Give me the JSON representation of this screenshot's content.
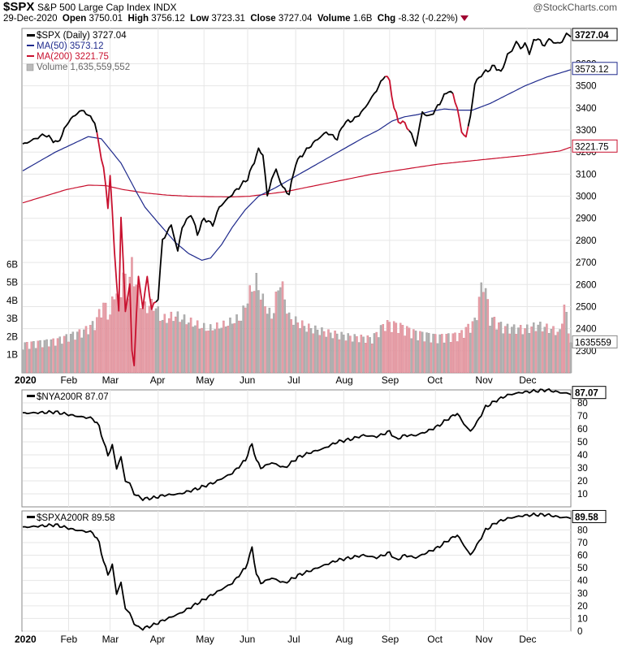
{
  "header": {
    "symbol": "$SPX",
    "description": "S&P 500 Large Cap Index",
    "exchange": "INDX",
    "brand": "@StockCharts.com",
    "date": "29-Dec-2020",
    "open_label": "Open",
    "open": "3750.01",
    "high_label": "High",
    "high": "3756.12",
    "low_label": "Low",
    "low": "3723.31",
    "close_label": "Close",
    "close": "3727.04",
    "volume_label": "Volume",
    "volume": "1.6B",
    "chg_label": "Chg",
    "chg": "-8.32 (-0.22%)"
  },
  "colors": {
    "up": "#000000",
    "down": "#c8102e",
    "ma50": "#1f2a8c",
    "ma200": "#c8102e",
    "vol_up": "#b0b0b0",
    "vol_down": "#e8a0a8",
    "grid": "#e6e6e6"
  },
  "chart_data": [
    {
      "type": "line",
      "legend": [
        {
          "label": "$SPX (Daily) 3727.04"
        },
        {
          "label": "MA(50) 3573.12"
        },
        {
          "label": "MA(200) 3221.75"
        },
        {
          "label": "Volume 1,635,559,552"
        }
      ],
      "price_ylim": [
        2200,
        3760
      ],
      "price_ticks": [
        "3600",
        "3500",
        "3400",
        "3300",
        "3200",
        "3100",
        "3000",
        "2900",
        "2800",
        "2700",
        "2600",
        "2500",
        "2400",
        "2300"
      ],
      "volume_ylim": [
        0,
        6.6
      ],
      "volume_ticks": [
        "1B",
        "2B",
        "3B",
        "4B",
        "5B",
        "6B"
      ],
      "last_labels": {
        "price": "3727.04",
        "ma50": "3573.12",
        "ma200": "3221.75",
        "volume": "1635559"
      },
      "month_labels": [
        "2020",
        "Feb",
        "Mar",
        "Apr",
        "May",
        "Jun",
        "Jul",
        "Aug",
        "Sep",
        "Oct",
        "Nov",
        "Dec"
      ],
      "month_positions": [
        0,
        21,
        40,
        62,
        83,
        103,
        125,
        147,
        168,
        189,
        211,
        231
      ],
      "total_days": 252,
      "price_anchors": [
        [
          0,
          3234
        ],
        [
          10,
          3280
        ],
        [
          16,
          3240
        ],
        [
          21,
          3340
        ],
        [
          26,
          3385
        ],
        [
          28,
          3386
        ],
        [
          33,
          3337
        ],
        [
          35,
          3225
        ],
        [
          37,
          3130
        ],
        [
          39,
          2950
        ],
        [
          40,
          3100
        ],
        [
          42,
          2750
        ],
        [
          44,
          2480
        ],
        [
          45,
          2900
        ],
        [
          46,
          2710
        ],
        [
          47,
          2480
        ],
        [
          49,
          2600
        ],
        [
          50,
          2300
        ],
        [
          51,
          2237
        ],
        [
          52,
          2450
        ],
        [
          53,
          2630
        ],
        [
          55,
          2500
        ],
        [
          57,
          2630
        ],
        [
          59,
          2490
        ],
        [
          62,
          2540
        ],
        [
          64,
          2800
        ],
        [
          68,
          2870
        ],
        [
          71,
          2750
        ],
        [
          73,
          2860
        ],
        [
          77,
          2920
        ],
        [
          80,
          2830
        ],
        [
          83,
          2900
        ],
        [
          87,
          2870
        ],
        [
          90,
          2950
        ],
        [
          96,
          3010
        ],
        [
          103,
          3080
        ],
        [
          108,
          3210
        ],
        [
          110,
          3190
        ],
        [
          112,
          3000
        ],
        [
          114,
          3080
        ],
        [
          116,
          3120
        ],
        [
          119,
          3040
        ],
        [
          122,
          3010
        ],
        [
          125,
          3150
        ],
        [
          129,
          3200
        ],
        [
          134,
          3250
        ],
        [
          139,
          3290
        ],
        [
          144,
          3260
        ],
        [
          147,
          3330
        ],
        [
          152,
          3350
        ],
        [
          156,
          3390
        ],
        [
          162,
          3480
        ],
        [
          166,
          3550
        ],
        [
          168,
          3520
        ],
        [
          170,
          3400
        ],
        [
          172,
          3340
        ],
        [
          175,
          3330
        ],
        [
          178,
          3280
        ],
        [
          180,
          3230
        ],
        [
          183,
          3380
        ],
        [
          186,
          3360
        ],
        [
          189,
          3390
        ],
        [
          192,
          3440
        ],
        [
          195,
          3480
        ],
        [
          197,
          3460
        ],
        [
          199,
          3400
        ],
        [
          201,
          3290
        ],
        [
          203,
          3270
        ],
        [
          205,
          3360
        ],
        [
          207,
          3510
        ],
        [
          210,
          3550
        ],
        [
          213,
          3570
        ],
        [
          216,
          3590
        ],
        [
          219,
          3560
        ],
        [
          222,
          3640
        ],
        [
          224,
          3660
        ],
        [
          226,
          3700
        ],
        [
          228,
          3670
        ],
        [
          230,
          3690
        ],
        [
          232,
          3650
        ],
        [
          234,
          3700
        ],
        [
          236,
          3720
        ],
        [
          238,
          3680
        ],
        [
          240,
          3700
        ],
        [
          242,
          3710
        ],
        [
          244,
          3690
        ],
        [
          247,
          3700
        ],
        [
          249,
          3735
        ],
        [
          251,
          3727
        ]
      ],
      "ma50_anchors": [
        [
          0,
          3115
        ],
        [
          15,
          3200
        ],
        [
          30,
          3270
        ],
        [
          36,
          3260
        ],
        [
          45,
          3150
        ],
        [
          52,
          3020
        ],
        [
          56,
          2950
        ],
        [
          62,
          2880
        ],
        [
          70,
          2790
        ],
        [
          76,
          2740
        ],
        [
          82,
          2710
        ],
        [
          86,
          2720
        ],
        [
          91,
          2780
        ],
        [
          96,
          2860
        ],
        [
          102,
          2940
        ],
        [
          108,
          3000
        ],
        [
          116,
          3040
        ],
        [
          124,
          3085
        ],
        [
          132,
          3130
        ],
        [
          140,
          3175
        ],
        [
          148,
          3220
        ],
        [
          156,
          3265
        ],
        [
          163,
          3300
        ],
        [
          169,
          3340
        ],
        [
          175,
          3360
        ],
        [
          181,
          3370
        ],
        [
          187,
          3385
        ],
        [
          193,
          3395
        ],
        [
          200,
          3390
        ],
        [
          206,
          3390
        ],
        [
          214,
          3420
        ],
        [
          222,
          3460
        ],
        [
          230,
          3500
        ],
        [
          240,
          3540
        ],
        [
          251,
          3573
        ]
      ],
      "ma200_anchors": [
        [
          0,
          2970
        ],
        [
          10,
          3000
        ],
        [
          20,
          3030
        ],
        [
          30,
          3050
        ],
        [
          38,
          3048
        ],
        [
          46,
          3030
        ],
        [
          56,
          3015
        ],
        [
          66,
          3005
        ],
        [
          76,
          3000
        ],
        [
          86,
          2998
        ],
        [
          96,
          2997
        ],
        [
          104,
          3000
        ],
        [
          112,
          3010
        ],
        [
          120,
          3020
        ],
        [
          130,
          3040
        ],
        [
          140,
          3060
        ],
        [
          150,
          3080
        ],
        [
          160,
          3100
        ],
        [
          170,
          3115
        ],
        [
          180,
          3130
        ],
        [
          190,
          3145
        ],
        [
          200,
          3155
        ],
        [
          210,
          3165
        ],
        [
          220,
          3175
        ],
        [
          230,
          3185
        ],
        [
          238,
          3195
        ],
        [
          246,
          3205
        ],
        [
          251,
          3222
        ]
      ],
      "down_ranges": [
        [
          34,
          60
        ],
        [
          166,
          176
        ],
        [
          197,
          203
        ]
      ],
      "volume_anchors": [
        [
          0,
          1.5
        ],
        [
          15,
          1.7
        ],
        [
          28,
          2.2
        ],
        [
          33,
          2.6
        ],
        [
          37,
          3.6
        ],
        [
          40,
          3.0
        ],
        [
          42,
          4.4
        ],
        [
          44,
          3.8
        ],
        [
          46,
          5.2
        ],
        [
          48,
          4.4
        ],
        [
          50,
          5.6
        ],
        [
          52,
          4.6
        ],
        [
          55,
          3.4
        ],
        [
          60,
          3.6
        ],
        [
          64,
          2.8
        ],
        [
          70,
          3.0
        ],
        [
          78,
          2.6
        ],
        [
          85,
          2.3
        ],
        [
          92,
          2.5
        ],
        [
          100,
          2.9
        ],
        [
          104,
          4.2
        ],
        [
          107,
          4.8
        ],
        [
          110,
          3.8
        ],
        [
          114,
          2.9
        ],
        [
          118,
          4.9
        ],
        [
          122,
          2.9
        ],
        [
          130,
          2.4
        ],
        [
          140,
          2.1
        ],
        [
          150,
          1.9
        ],
        [
          160,
          1.8
        ],
        [
          166,
          2.6
        ],
        [
          172,
          2.5
        ],
        [
          180,
          2.1
        ],
        [
          190,
          1.9
        ],
        [
          200,
          2.0
        ],
        [
          207,
          2.7
        ],
        [
          211,
          5.0
        ],
        [
          214,
          2.9
        ],
        [
          220,
          2.4
        ],
        [
          230,
          2.3
        ],
        [
          236,
          2.5
        ],
        [
          242,
          2.3
        ],
        [
          246,
          2.1
        ],
        [
          248,
          3.6
        ],
        [
          251,
          1.6
        ]
      ]
    },
    {
      "type": "line",
      "legend": [
        {
          "label": "$NYA200R 87.07"
        }
      ],
      "ylim": [
        0,
        90
      ],
      "ticks": [
        "10",
        "20",
        "30",
        "40",
        "50",
        "60",
        "70",
        "80"
      ],
      "last_label": "87.07",
      "anchors": [
        [
          0,
          72
        ],
        [
          15,
          73
        ],
        [
          24,
          70
        ],
        [
          32,
          68
        ],
        [
          35,
          62
        ],
        [
          37,
          50
        ],
        [
          39,
          40
        ],
        [
          41,
          47
        ],
        [
          43,
          30
        ],
        [
          45,
          38
        ],
        [
          47,
          20
        ],
        [
          49,
          18
        ],
        [
          51,
          10
        ],
        [
          53,
          8
        ],
        [
          55,
          6
        ],
        [
          60,
          7
        ],
        [
          65,
          9
        ],
        [
          72,
          10
        ],
        [
          80,
          14
        ],
        [
          88,
          19
        ],
        [
          96,
          26
        ],
        [
          102,
          36
        ],
        [
          104,
          45
        ],
        [
          105,
          48
        ],
        [
          107,
          36
        ],
        [
          109,
          30
        ],
        [
          114,
          34
        ],
        [
          120,
          30
        ],
        [
          126,
          38
        ],
        [
          132,
          42
        ],
        [
          138,
          45
        ],
        [
          144,
          50
        ],
        [
          150,
          52
        ],
        [
          156,
          55
        ],
        [
          162,
          54
        ],
        [
          168,
          58
        ],
        [
          171,
          52
        ],
        [
          175,
          55
        ],
        [
          180,
          55
        ],
        [
          185,
          58
        ],
        [
          190,
          62
        ],
        [
          195,
          68
        ],
        [
          199,
          72
        ],
        [
          202,
          64
        ],
        [
          205,
          58
        ],
        [
          208,
          65
        ],
        [
          212,
          77
        ],
        [
          217,
          82
        ],
        [
          222,
          86
        ],
        [
          228,
          88
        ],
        [
          234,
          89
        ],
        [
          240,
          90
        ],
        [
          246,
          88
        ],
        [
          251,
          87
        ]
      ]
    },
    {
      "type": "line",
      "legend": [
        {
          "label": "$SPXA200R 89.58"
        }
      ],
      "ylim": [
        0,
        95
      ],
      "ticks": [
        "0",
        "10",
        "20",
        "30",
        "40",
        "50",
        "60",
        "70",
        "80"
      ],
      "last_label": "89.58",
      "anchors": [
        [
          0,
          82
        ],
        [
          15,
          84
        ],
        [
          24,
          80
        ],
        [
          32,
          78
        ],
        [
          35,
          70
        ],
        [
          37,
          55
        ],
        [
          39,
          45
        ],
        [
          41,
          52
        ],
        [
          43,
          30
        ],
        [
          45,
          38
        ],
        [
          47,
          18
        ],
        [
          49,
          14
        ],
        [
          51,
          6
        ],
        [
          53,
          3
        ],
        [
          55,
          2
        ],
        [
          60,
          5
        ],
        [
          65,
          9
        ],
        [
          72,
          14
        ],
        [
          80,
          22
        ],
        [
          88,
          30
        ],
        [
          96,
          38
        ],
        [
          102,
          50
        ],
        [
          104,
          60
        ],
        [
          105,
          66
        ],
        [
          107,
          45
        ],
        [
          109,
          38
        ],
        [
          114,
          42
        ],
        [
          120,
          38
        ],
        [
          126,
          44
        ],
        [
          132,
          48
        ],
        [
          138,
          52
        ],
        [
          144,
          56
        ],
        [
          150,
          58
        ],
        [
          156,
          60
        ],
        [
          162,
          58
        ],
        [
          168,
          62
        ],
        [
          171,
          56
        ],
        [
          175,
          60
        ],
        [
          180,
          58
        ],
        [
          185,
          62
        ],
        [
          190,
          66
        ],
        [
          195,
          72
        ],
        [
          199,
          76
        ],
        [
          202,
          68
        ],
        [
          205,
          60
        ],
        [
          208,
          68
        ],
        [
          212,
          80
        ],
        [
          217,
          86
        ],
        [
          222,
          89
        ],
        [
          228,
          91
        ],
        [
          234,
          92
        ],
        [
          240,
          92
        ],
        [
          246,
          90
        ],
        [
          251,
          89.6
        ]
      ]
    }
  ]
}
